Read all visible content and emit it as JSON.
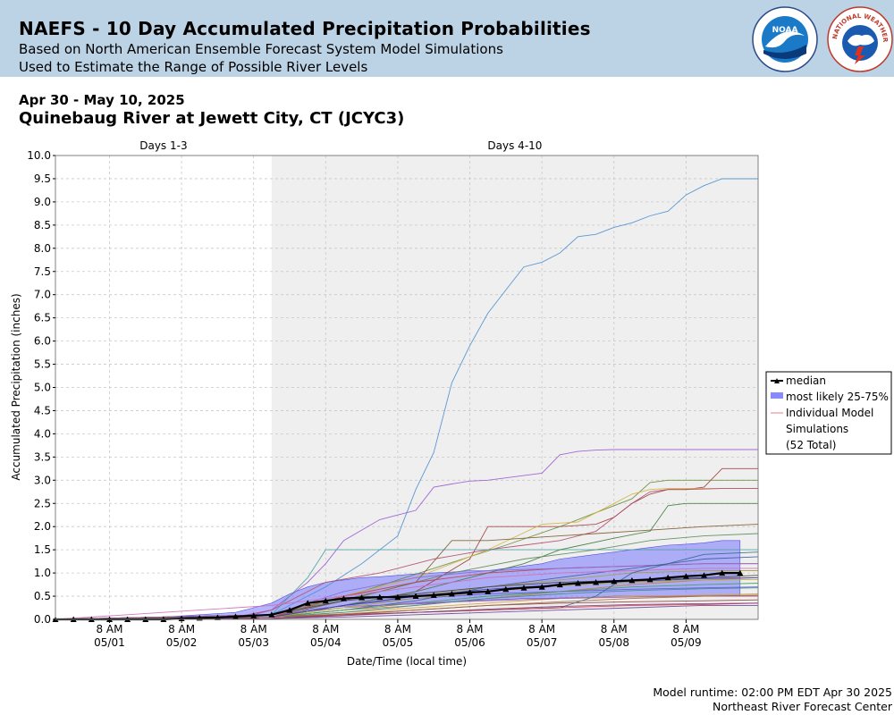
{
  "header": {
    "title": "NAEFS - 10 Day Accumulated Precipitation Probabilities",
    "subtitle_1": "Based on North American Ensemble Forecast System Model Simulations",
    "subtitle_2": "Used to Estimate the Range of Possible River Levels",
    "logo_noaa_text": "NOAA",
    "logo_nws_text": "NATIONAL WEATHER SERVICE"
  },
  "chart_header": {
    "date_range": "Apr 30 - May 10, 2025",
    "location": "Quinebaug River at Jewett City, CT (JCYC3)"
  },
  "footer": {
    "runtime": "Model runtime: 02:00 PM EDT Apr 30 2025",
    "center": "Northeast River Forecast Center"
  },
  "colors": {
    "banner": "#bcd3e6",
    "shade": "#efefef",
    "band": "#6b6bff",
    "median": "#000000"
  },
  "chart_data": {
    "type": "line",
    "xlabel": "Date/Time (local time)",
    "ylabel": "Accumulated Precipitation (inches)",
    "ylim": [
      0,
      10
    ],
    "yticks": [
      "0.0",
      "0.5",
      "1.0",
      "1.5",
      "2.0",
      "2.5",
      "3.0",
      "3.5",
      "4.0",
      "4.5",
      "5.0",
      "5.5",
      "6.0",
      "6.5",
      "7.0",
      "7.5",
      "8.0",
      "8.5",
      "9.0",
      "9.5",
      "10.0"
    ],
    "x_range_hours": [
      0,
      234
    ],
    "x_tick_labels": [
      {
        "time": "8 AM",
        "date": "05/01",
        "hour": 18
      },
      {
        "time": "8 AM",
        "date": "05/02",
        "hour": 42
      },
      {
        "time": "8 AM",
        "date": "05/03",
        "hour": 66
      },
      {
        "time": "8 AM",
        "date": "05/04",
        "hour": 90
      },
      {
        "time": "8 AM",
        "date": "05/05",
        "hour": 114
      },
      {
        "time": "8 AM",
        "date": "05/06",
        "hour": 138
      },
      {
        "time": "8 AM",
        "date": "05/07",
        "hour": 162
      },
      {
        "time": "8 AM",
        "date": "05/08",
        "hour": 186
      },
      {
        "time": "8 AM",
        "date": "05/09",
        "hour": 210
      }
    ],
    "periods": [
      {
        "label": "Days 1-3",
        "start_hour": 0,
        "end_hour": 72,
        "shaded": false
      },
      {
        "label": "Days 4-10",
        "start_hour": 72,
        "end_hour": 234,
        "shaded": true
      }
    ],
    "legend": {
      "placement": "right",
      "median": "median",
      "band": "most likely 25-75%",
      "members_line1": "Individual Model",
      "members_line2": "Simulations",
      "members_line3": "(52 Total)"
    },
    "median": {
      "x": [
        0,
        6,
        12,
        18,
        24,
        30,
        36,
        42,
        48,
        54,
        60,
        66,
        72,
        78,
        84,
        90,
        96,
        102,
        108,
        114,
        120,
        126,
        132,
        138,
        144,
        150,
        156,
        162,
        168,
        174,
        180,
        186,
        192,
        198,
        204,
        210,
        216,
        222,
        228
      ],
      "y": [
        0,
        0,
        0,
        0,
        0,
        0,
        0,
        0.02,
        0.03,
        0.04,
        0.06,
        0.08,
        0.1,
        0.2,
        0.35,
        0.4,
        0.45,
        0.47,
        0.48,
        0.48,
        0.5,
        0.52,
        0.55,
        0.58,
        0.6,
        0.65,
        0.68,
        0.7,
        0.75,
        0.78,
        0.8,
        0.82,
        0.84,
        0.86,
        0.9,
        0.93,
        0.95,
        1.0,
        1.0
      ]
    },
    "band": {
      "x": [
        36,
        48,
        60,
        66,
        72,
        78,
        84,
        90,
        96,
        102,
        108,
        114,
        120,
        126,
        132,
        138,
        144,
        150,
        156,
        162,
        168,
        174,
        180,
        186,
        192,
        198,
        204,
        210,
        216,
        222,
        228
      ],
      "y_low": [
        0,
        0.01,
        0.02,
        0.04,
        0.06,
        0.1,
        0.2,
        0.25,
        0.28,
        0.3,
        0.3,
        0.32,
        0.33,
        0.35,
        0.38,
        0.4,
        0.42,
        0.43,
        0.45,
        0.45,
        0.46,
        0.47,
        0.48,
        0.5,
        0.5,
        0.5,
        0.5,
        0.5,
        0.5,
        0.5,
        0.5
      ],
      "y_high": [
        0.05,
        0.1,
        0.15,
        0.25,
        0.35,
        0.55,
        0.7,
        0.8,
        0.85,
        0.9,
        0.92,
        0.95,
        0.98,
        1.0,
        1.02,
        1.05,
        1.05,
        1.1,
        1.15,
        1.2,
        1.3,
        1.35,
        1.4,
        1.45,
        1.5,
        1.55,
        1.6,
        1.62,
        1.65,
        1.7,
        1.7
      ]
    },
    "members": [
      {
        "color": "#4a8fd0",
        "x": [
          0,
          36,
          60,
          72,
          78,
          84,
          90,
          102,
          114,
          120,
          126,
          132,
          138,
          144,
          150,
          156,
          162,
          168,
          174,
          180,
          186,
          192,
          198,
          204,
          210,
          216,
          222,
          228,
          234
        ],
        "y": [
          0,
          0,
          0.05,
          0.1,
          0.3,
          0.5,
          0.7,
          1.2,
          1.8,
          2.8,
          3.6,
          5.1,
          5.9,
          6.6,
          7.1,
          7.6,
          7.7,
          7.9,
          8.25,
          8.3,
          8.45,
          8.55,
          8.7,
          8.8,
          9.15,
          9.35,
          9.5,
          9.5,
          9.5
        ]
      },
      {
        "color": "#9a5ad2",
        "x": [
          0,
          48,
          66,
          72,
          84,
          90,
          96,
          108,
          114,
          120,
          126,
          132,
          138,
          144,
          150,
          156,
          162,
          168,
          174,
          180,
          186,
          192,
          198,
          204,
          210,
          216,
          222,
          228,
          234
        ],
        "y": [
          0,
          0.02,
          0.1,
          0.2,
          0.8,
          1.2,
          1.7,
          2.15,
          2.25,
          2.35,
          2.85,
          2.92,
          2.98,
          3.0,
          3.05,
          3.1,
          3.15,
          3.55,
          3.62,
          3.65,
          3.66,
          3.66,
          3.66,
          3.66,
          3.66,
          3.66,
          3.66,
          3.66,
          3.66
        ]
      },
      {
        "color": "#a03c3c",
        "x": [
          0,
          72,
          96,
          120,
          138,
          144,
          168,
          180,
          186,
          192,
          198,
          204,
          210,
          216,
          222,
          228,
          234
        ],
        "y": [
          0,
          0.05,
          0.3,
          0.6,
          1.3,
          2.0,
          2.0,
          2.05,
          2.2,
          2.5,
          2.7,
          2.8,
          2.8,
          2.85,
          3.25,
          3.25,
          3.25
        ]
      },
      {
        "color": "#6a8a3a",
        "x": [
          0,
          72,
          102,
          126,
          150,
          168,
          180,
          192,
          198,
          204,
          210,
          216,
          222,
          228,
          234
        ],
        "y": [
          0,
          0.1,
          0.6,
          1.1,
          1.6,
          2.0,
          2.3,
          2.6,
          2.95,
          3.0,
          3.0,
          3.0,
          3.0,
          3.0,
          3.0
        ]
      },
      {
        "color": "#d2b43c",
        "x": [
          0,
          72,
          96,
          120,
          144,
          162,
          174,
          186,
          192,
          198,
          204,
          210,
          216,
          222,
          228,
          234
        ],
        "y": [
          0,
          0.05,
          0.5,
          0.9,
          1.5,
          2.05,
          2.1,
          2.5,
          2.7,
          2.8,
          2.82,
          2.82,
          2.82,
          2.82,
          2.82,
          2.82
        ]
      },
      {
        "color": "#b04a6a",
        "x": [
          0,
          60,
          72,
          90,
          108,
          126,
          144,
          156,
          168,
          180,
          186,
          192,
          198,
          204,
          210,
          222,
          234
        ],
        "y": [
          0,
          0.05,
          0.2,
          0.8,
          1.0,
          1.3,
          1.5,
          1.6,
          1.7,
          1.9,
          2.2,
          2.5,
          2.75,
          2.8,
          2.8,
          2.82,
          2.82
        ]
      },
      {
        "color": "#4aa0a0",
        "x": [
          0,
          72,
          84,
          90,
          108,
          120,
          132,
          144,
          156,
          168,
          180,
          192,
          204,
          216,
          234
        ],
        "y": [
          0,
          0.1,
          0.9,
          1.5,
          1.5,
          1.5,
          1.5,
          1.5,
          1.5,
          1.5,
          1.5,
          1.5,
          1.5,
          1.5,
          1.5
        ]
      },
      {
        "color": "#7a5a2a",
        "x": [
          0,
          72,
          96,
          120,
          132,
          144,
          156,
          168,
          180,
          192,
          204,
          216,
          234
        ],
        "y": [
          0,
          0.05,
          0.4,
          0.8,
          1.7,
          1.7,
          1.75,
          1.8,
          1.85,
          1.9,
          1.95,
          2.0,
          2.05
        ]
      },
      {
        "color": "#3c7a3c",
        "x": [
          0,
          72,
          96,
          120,
          138,
          156,
          168,
          186,
          198,
          204,
          210,
          222,
          234
        ],
        "y": [
          0,
          0.05,
          0.3,
          0.6,
          0.9,
          1.2,
          1.5,
          1.75,
          1.9,
          2.45,
          2.5,
          2.5,
          2.5
        ]
      },
      {
        "color": "#5a8a5a",
        "x": [
          0,
          72,
          108,
          132,
          156,
          180,
          198,
          216,
          234
        ],
        "y": [
          0,
          0.1,
          0.6,
          1.0,
          1.3,
          1.5,
          1.7,
          1.8,
          1.85
        ]
      },
      {
        "color": "#c04040",
        "x": [
          0,
          72,
          96,
          120,
          144,
          168,
          192,
          216,
          234
        ],
        "y": [
          0,
          0.05,
          0.5,
          0.8,
          1.0,
          1.1,
          1.15,
          1.2,
          1.2
        ]
      },
      {
        "color": "#8a6ad0",
        "x": [
          0,
          72,
          96,
          120,
          144,
          168,
          192,
          216,
          234
        ],
        "y": [
          0,
          0.1,
          0.6,
          0.9,
          1.05,
          1.1,
          1.15,
          1.2,
          1.2
        ]
      },
      {
        "color": "#3c5aa0",
        "x": [
          0,
          72,
          96,
          120,
          144,
          168,
          192,
          216,
          234
        ],
        "y": [
          0,
          0.05,
          0.2,
          0.4,
          0.7,
          0.9,
          1.1,
          1.3,
          1.35
        ]
      },
      {
        "color": "#a0a03c",
        "x": [
          0,
          72,
          96,
          120,
          144,
          168,
          192,
          216,
          234
        ],
        "y": [
          0,
          0.05,
          0.3,
          0.5,
          0.7,
          0.85,
          1.0,
          1.05,
          1.05
        ]
      },
      {
        "color": "#d06ab4",
        "x": [
          0,
          48,
          72,
          96,
          120,
          144,
          168,
          192,
          216,
          234
        ],
        "y": [
          0,
          0.2,
          0.3,
          0.5,
          0.7,
          0.9,
          1.0,
          1.05,
          1.1,
          1.1
        ]
      },
      {
        "color": "#c87a3c",
        "x": [
          0,
          72,
          96,
          120,
          144,
          168,
          192,
          216,
          234
        ],
        "y": [
          0,
          0.05,
          0.2,
          0.3,
          0.45,
          0.6,
          0.75,
          0.85,
          0.9
        ]
      },
      {
        "color": "#404040",
        "x": [
          0,
          72,
          96,
          120,
          144,
          168,
          192,
          216,
          234
        ],
        "y": [
          0,
          0.1,
          0.4,
          0.55,
          0.7,
          0.8,
          0.85,
          0.9,
          0.95
        ]
      },
      {
        "color": "#5a5ad2",
        "x": [
          0,
          72,
          96,
          120,
          144,
          168,
          192,
          216,
          234
        ],
        "y": [
          0,
          0.05,
          0.3,
          0.45,
          0.55,
          0.6,
          0.65,
          0.68,
          0.7
        ]
      },
      {
        "color": "#8a3c3c",
        "x": [
          0,
          72,
          96,
          120,
          144,
          168,
          192,
          216,
          234
        ],
        "y": [
          0,
          0.02,
          0.1,
          0.2,
          0.3,
          0.35,
          0.38,
          0.4,
          0.42
        ]
      },
      {
        "color": "#3ca05a",
        "x": [
          0,
          72,
          96,
          120,
          144,
          168,
          192,
          216,
          234
        ],
        "y": [
          0,
          0.05,
          0.2,
          0.35,
          0.5,
          0.6,
          0.7,
          0.75,
          0.78
        ]
      },
      {
        "color": "#d2a03c",
        "x": [
          0,
          72,
          96,
          120,
          144,
          168,
          192,
          216,
          234
        ],
        "y": [
          0,
          0.05,
          0.15,
          0.25,
          0.35,
          0.45,
          0.5,
          0.52,
          0.55
        ]
      },
      {
        "color": "#a05aa0",
        "x": [
          0,
          72,
          96,
          120,
          144,
          168,
          192,
          216,
          234
        ],
        "y": [
          0,
          0.1,
          0.25,
          0.35,
          0.4,
          0.45,
          0.48,
          0.5,
          0.5
        ]
      },
      {
        "color": "#2a6a8a",
        "x": [
          0,
          72,
          96,
          120,
          144,
          168,
          180,
          192,
          216,
          234
        ],
        "y": [
          0,
          0.05,
          0.1,
          0.15,
          0.2,
          0.25,
          0.5,
          1.0,
          1.4,
          1.45
        ]
      },
      {
        "color": "#d23c3c",
        "x": [
          0,
          72,
          96,
          120,
          144,
          168,
          192,
          216,
          234
        ],
        "y": [
          0,
          0.05,
          0.1,
          0.15,
          0.2,
          0.25,
          0.3,
          0.32,
          0.35
        ]
      },
      {
        "color": "#6a3ca0",
        "x": [
          0,
          72,
          96,
          120,
          144,
          168,
          192,
          216,
          234
        ],
        "y": [
          0,
          0.02,
          0.05,
          0.1,
          0.15,
          0.2,
          0.25,
          0.3,
          0.3
        ]
      },
      {
        "color": "#3c8a8a",
        "x": [
          0,
          72,
          96,
          120,
          144,
          168,
          192,
          216,
          234
        ],
        "y": [
          0,
          0.05,
          0.15,
          0.3,
          0.45,
          0.55,
          0.62,
          0.66,
          0.68
        ]
      },
      {
        "color": "#b0b03c",
        "x": [
          0,
          72,
          96,
          120,
          144,
          168,
          192,
          216,
          234
        ],
        "y": [
          0,
          0.05,
          0.25,
          0.45,
          0.6,
          0.72,
          0.8,
          0.85,
          0.86
        ]
      },
      {
        "color": "#7a3c7a",
        "x": [
          0,
          72,
          96,
          120,
          144,
          168,
          192,
          216,
          234
        ],
        "y": [
          0,
          0.02,
          0.08,
          0.15,
          0.22,
          0.28,
          0.32,
          0.34,
          0.35
        ]
      },
      {
        "color": "#3c3ca0",
        "x": [
          0,
          72,
          96,
          120,
          144,
          168,
          192,
          216,
          234
        ],
        "y": [
          0,
          0.05,
          0.3,
          0.5,
          0.65,
          0.75,
          0.82,
          0.88,
          0.9
        ]
      },
      {
        "color": "#a06a3c",
        "x": [
          0,
          72,
          96,
          120,
          144,
          168,
          192,
          216,
          234
        ],
        "y": [
          0,
          0.05,
          0.12,
          0.2,
          0.3,
          0.38,
          0.45,
          0.5,
          0.52
        ]
      }
    ]
  }
}
